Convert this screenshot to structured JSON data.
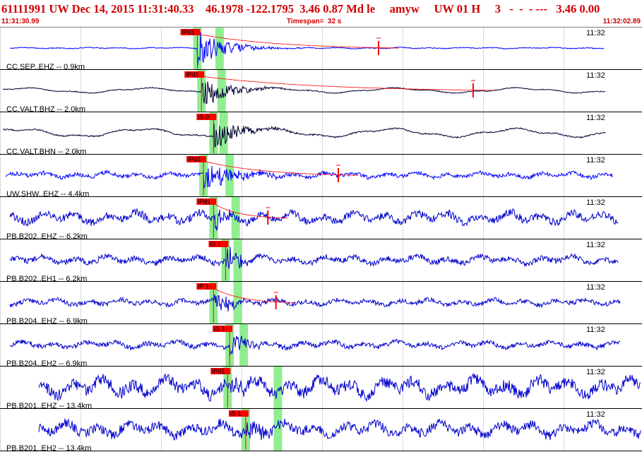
{
  "header": {
    "title": "61111991 UW Dec 14, 2015 11:31:40.33    46.1978 -122.1795  3.46 0.87 Md le     amyw     UW 01 H     3   -  -  - ---   3.46 0.00",
    "start_time": "11:31:30.99",
    "timespan": "Timespan=  32 s",
    "end_time": "11:32:02.89"
  },
  "colors": {
    "title": "#d00000",
    "trace_short_period": "#0000ff",
    "trace_broadband": "#000033",
    "trace_borehole": "#0000cc",
    "pick_marker": "#ff0000",
    "pick_window": "#90ee90",
    "grid": "#c0c0c0"
  },
  "chart_data": {
    "type": "line",
    "title": "61111991 UW Dec 14, 2015 11:31:40.33",
    "x_range": [
      "11:31:30.99",
      "11:32:02.89"
    ],
    "time_tick_label": "11:32",
    "channels": [
      {
        "label": "CC.SEP..EHZ -- 0.9km",
        "pick": "iPd1",
        "pick_time": "11:31:40.8",
        "pick2_time": "11:31:41.9",
        "amp_time": "11:31:49.8"
      },
      {
        "label": "CC.VALT.BHZ -- 2.0km",
        "pick": "iPd1",
        "pick_time": "11:31:41.0",
        "pick2_time": "11:31:42.0",
        "amp_time": "11:31:54.5"
      },
      {
        "label": "CC.VALT.BHN -- 2.0km",
        "pick": "iS 0",
        "pick_time": "11:31:41.6",
        "pick2_time": "11:31:42.1"
      },
      {
        "label": "UW.SHW..EHZ -- 4.4km",
        "pick": "iPd1",
        "pick_time": "11:31:41.1",
        "pick2_time": "11:31:42.4",
        "amp_time": "11:31:47.8"
      },
      {
        "label": "PB.B202..EHZ -- 6.2km",
        "pick": "iPd1",
        "pick_time": "11:31:41.6",
        "pick2_time": "11:31:42.7",
        "amp_time": "11:31:44.3"
      },
      {
        "label": "PB.B202..EH1 -- 6.2km",
        "pick": "iS 1",
        "pick_time": "11:31:42.2",
        "pick2_time": "11:31:42.8"
      },
      {
        "label": "PB.B204..EHZ -- 6.9km",
        "pick": "iP 1",
        "pick_time": "11:31:41.6",
        "pick2_time": "11:31:42.8",
        "amp_time": "11:31:44.7"
      },
      {
        "label": "PB.B204..EH2 -- 6.9km",
        "pick": "iS 1",
        "pick_time": "11:31:42.4",
        "pick2_time": "11:31:43.1"
      },
      {
        "label": "PB.B201..EHZ -- 13.4km",
        "pick": "iPd1",
        "pick_time": "11:31:42.3",
        "pick2_time": "11:31:44.8"
      },
      {
        "label": "PB.B201..EH2 -- 13.4km",
        "pick": "iS 1",
        "pick_time": "11:31:43.2",
        "pick2_time": "11:31:44.8"
      }
    ]
  }
}
